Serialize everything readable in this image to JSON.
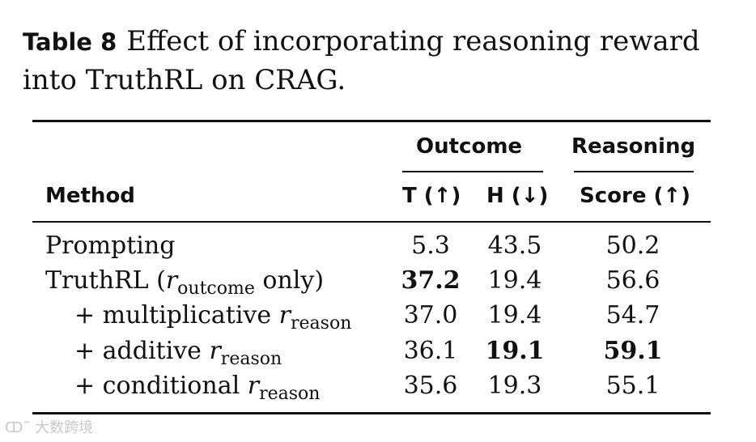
{
  "caption": {
    "label": "Table 8",
    "text_line1": "Effect of incorporating reasoning reward",
    "text_line2": "into TruthRL on CRAG."
  },
  "table": {
    "group_headers": {
      "outcome": "Outcome",
      "reasoning": "Reasoning"
    },
    "column_headers": {
      "method": "Method",
      "t": "T (↑)",
      "h": "H (↓)",
      "score": "Score (↑)"
    },
    "rows": [
      {
        "method": "Prompting",
        "t": "5.3",
        "h": "43.5",
        "score": "50.2"
      },
      {
        "method_prefix": "TruthRL (",
        "method_symbol": "r",
        "method_sub": "outcome",
        "method_suffix": " only)",
        "t": "37.2",
        "h": "19.4",
        "score": "56.6",
        "bold": [
          "t"
        ]
      },
      {
        "method_prefix": "+ multiplicative ",
        "method_symbol": "r",
        "method_sub": "reason",
        "t": "37.0",
        "h": "19.4",
        "score": "54.7"
      },
      {
        "method_prefix": "+ additive ",
        "method_symbol": "r",
        "method_sub": "reason",
        "t": "36.1",
        "h": "19.1",
        "score": "59.1",
        "bold": [
          "h",
          "score"
        ]
      },
      {
        "method_prefix": "+ conditional ",
        "method_symbol": "r",
        "method_sub": "reason",
        "t": "35.6",
        "h": "19.3",
        "score": "55.1"
      }
    ]
  },
  "watermark": "大数跨境"
}
